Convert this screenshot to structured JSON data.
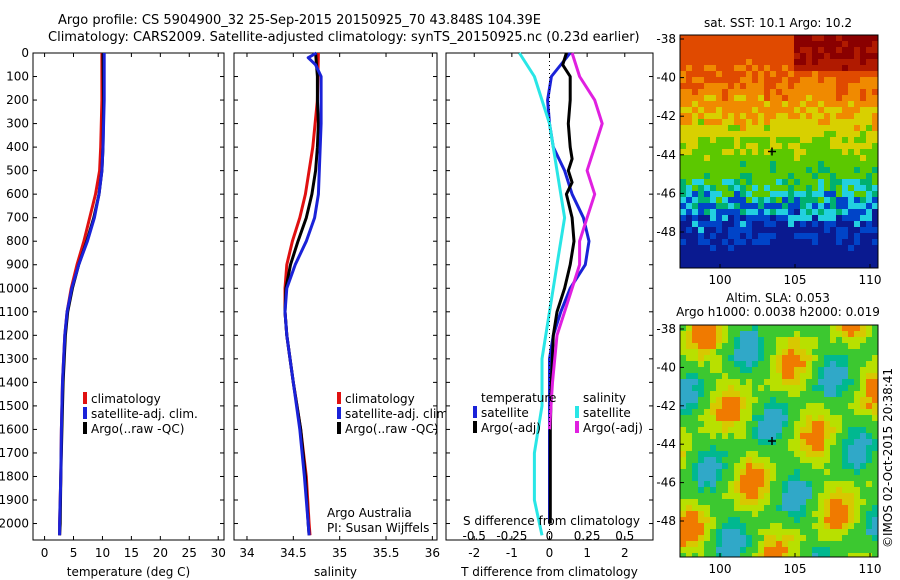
{
  "header": {
    "line1": "Argo profile: CS 5904900_32 25-Sep-2015 20150925_70 43.848S 104.39E",
    "line2": "Climatology: CARS2009. Satellite-adjusted climatology: synTS_20150925.nc (0.23d earlier)"
  },
  "depth_ticks": [
    "0",
    "100",
    "200",
    "300",
    "400",
    "500",
    "600",
    "700",
    "800",
    "900",
    "1000",
    "1100",
    "1200",
    "1300",
    "1400",
    "1500",
    "1600",
    "1700",
    "1800",
    "1900",
    "2000"
  ],
  "colors": {
    "climatology": "#e01010",
    "satellite": "#1a22d8",
    "argo": "#000000",
    "cyan": "#29e6e6",
    "magenta": "#e020e0"
  },
  "chart_data": [
    {
      "type": "line",
      "xlabel": "temperature (deg C)",
      "xticks": [
        "0",
        "5",
        "10",
        "15",
        "20",
        "25",
        "30"
      ],
      "xlim": [
        -2,
        31
      ],
      "ylim": [
        0,
        2070
      ],
      "legend": [
        "climatology",
        "satellite-adj. clim.",
        "Argo(..raw -QC)"
      ],
      "series": [
        {
          "name": "climatology",
          "depth": [
            0,
            200,
            400,
            500,
            600,
            700,
            800,
            900,
            1000,
            1100,
            1200,
            1400,
            1600,
            1800,
            2000,
            2050
          ],
          "values": [
            9.9,
            9.9,
            9.7,
            9.5,
            8.8,
            7.8,
            6.8,
            5.6,
            4.6,
            3.9,
            3.5,
            3.1,
            2.9,
            2.8,
            2.6,
            2.6
          ]
        },
        {
          "name": "satellite-adj. clim.",
          "depth": [
            0,
            200,
            400,
            500,
            600,
            700,
            800,
            900,
            1000,
            1100,
            1200,
            1400,
            1600,
            1800,
            2000,
            2050
          ],
          "values": [
            10.3,
            10.3,
            10.1,
            9.9,
            9.4,
            8.6,
            7.4,
            5.9,
            4.7,
            3.9,
            3.5,
            3.1,
            2.9,
            2.8,
            2.6,
            2.6
          ]
        },
        {
          "name": "Argo(..raw -QC)",
          "depth": [
            0,
            200,
            400,
            500,
            600,
            700,
            800,
            900,
            1000,
            1100,
            1200,
            1400,
            1600,
            1800,
            2000,
            2050
          ],
          "values": [
            10.1,
            10.2,
            10.1,
            9.9,
            9.4,
            8.5,
            7.3,
            5.9,
            4.8,
            4.0,
            3.6,
            3.2,
            3.0,
            2.8,
            2.7,
            2.6
          ]
        }
      ]
    },
    {
      "type": "line",
      "xlabel": "salinity",
      "xticks": [
        "34",
        "34.5",
        "35",
        "35.5",
        "36"
      ],
      "xlim": [
        33.86,
        36.05
      ],
      "ylim": [
        0,
        2070
      ],
      "legend": [
        "climatology",
        "satellite-adj. clim.",
        "Argo(..raw -QC)"
      ],
      "annotation": [
        "Argo Australia",
        "PI: Susan Wijffels"
      ],
      "series": [
        {
          "name": "climatology",
          "depth": [
            0,
            200,
            400,
            600,
            700,
            800,
            900,
            1000,
            1100,
            1200,
            1400,
            1600,
            1800,
            2000,
            2050
          ],
          "values": [
            34.77,
            34.76,
            34.71,
            34.63,
            34.57,
            34.49,
            34.43,
            34.41,
            34.41,
            34.43,
            34.5,
            34.58,
            34.64,
            34.67,
            34.68
          ]
        },
        {
          "name": "satellite-adj. clim.",
          "depth": [
            0,
            20,
            50,
            100,
            200,
            300,
            400,
            600,
            700,
            800,
            900,
            1000,
            1100,
            1200,
            1400,
            1600,
            1800,
            2000,
            2050
          ],
          "values": [
            34.75,
            34.66,
            34.74,
            34.8,
            34.8,
            34.8,
            34.79,
            34.77,
            34.73,
            34.64,
            34.52,
            34.43,
            34.41,
            34.43,
            34.5,
            34.57,
            34.62,
            34.66,
            34.67
          ]
        },
        {
          "name": "Argo(..raw -QC)",
          "depth": [
            0,
            50,
            100,
            200,
            300,
            400,
            500,
            600,
            700,
            800,
            900,
            1000,
            1100,
            1200,
            1400,
            1600,
            1800,
            2000,
            2050
          ],
          "values": [
            34.74,
            34.75,
            34.76,
            34.76,
            34.77,
            34.76,
            34.74,
            34.7,
            34.64,
            34.55,
            34.47,
            34.42,
            34.41,
            34.43,
            34.5,
            34.58,
            34.63,
            34.66,
            34.67
          ]
        }
      ]
    },
    {
      "type": "line",
      "xlabel": "T difference from climatology",
      "xticks": [
        "-2",
        "-1",
        "0",
        "1",
        "2"
      ],
      "xlim": [
        -2.75,
        2.75
      ],
      "ylim": [
        0,
        2070
      ],
      "top_label": "S difference from climatology",
      "top_ticks": [
        "-0.5",
        "-0.25",
        "0",
        "0.25",
        "0.5"
      ],
      "legend": [
        "temperature",
        "satellite",
        "Argo(-adj)",
        "salinity",
        "satellite",
        "Argo(-adj)"
      ],
      "series": [
        {
          "name": "satellite",
          "depth": [
            0,
            100,
            200,
            300,
            400,
            500,
            600,
            700,
            800,
            900,
            1000,
            1100,
            1200,
            1300,
            1400,
            1600,
            1800,
            2000
          ],
          "values": [
            0.55,
            0.05,
            -0.05,
            0.0,
            0.1,
            0.4,
            0.6,
            0.9,
            1.05,
            0.95,
            0.55,
            0.3,
            0.1,
            0.0,
            0.0,
            0.0,
            0.0,
            0.0
          ]
        },
        {
          "name": "Argo(-adj)",
          "depth": [
            0,
            50,
            100,
            200,
            300,
            400,
            450,
            500,
            550,
            600,
            700,
            800,
            900,
            1000,
            1100,
            1200,
            1400,
            1600,
            1800,
            2000
          ],
          "values": [
            0.45,
            0.35,
            0.55,
            0.55,
            0.5,
            0.55,
            0.6,
            0.5,
            0.6,
            0.45,
            0.6,
            0.65,
            0.55,
            0.4,
            0.2,
            0.1,
            0.05,
            0.02,
            0.02,
            0.02
          ]
        },
        {
          "name": "satellite",
          "depth": [
            0,
            100,
            300,
            500,
            700,
            900,
            1100,
            1300,
            1500,
            1700,
            1900,
            2050
          ],
          "values": [
            -0.2,
            -0.1,
            0.0,
            0.05,
            0.1,
            0.05,
            0.0,
            -0.05,
            -0.05,
            -0.1,
            -0.1,
            -0.05
          ]
        },
        {
          "name": "Argo(-adj)",
          "depth": [
            0,
            100,
            200,
            300,
            400,
            500,
            600,
            700,
            800,
            900,
            1000,
            1100,
            1200,
            1400,
            1600
          ],
          "values": [
            0.15,
            0.2,
            0.3,
            0.35,
            0.3,
            0.25,
            0.3,
            0.25,
            0.2,
            0.2,
            0.15,
            0.1,
            0.05,
            0.02,
            0.0
          ]
        }
      ]
    },
    {
      "type": "heatmap",
      "title": "sat. SST: 10.1 Argo: 10.2",
      "yticks": [
        "-38",
        "-40",
        "-42",
        "-44",
        "-46",
        "-48"
      ],
      "xticks": [
        "100",
        "105",
        "110"
      ]
    },
    {
      "type": "heatmap",
      "title": "Altim. SLA: 0.053",
      "subtitle": "Argo h1000: 0.0038 h2000: 0.019",
      "yticks": [
        "-38",
        "-40",
        "-42",
        "-44",
        "-46",
        "-48"
      ],
      "xticks": [
        "100",
        "105",
        "110"
      ]
    }
  ],
  "watermark": "©IMOS 02-Oct-2015 20:38:41"
}
